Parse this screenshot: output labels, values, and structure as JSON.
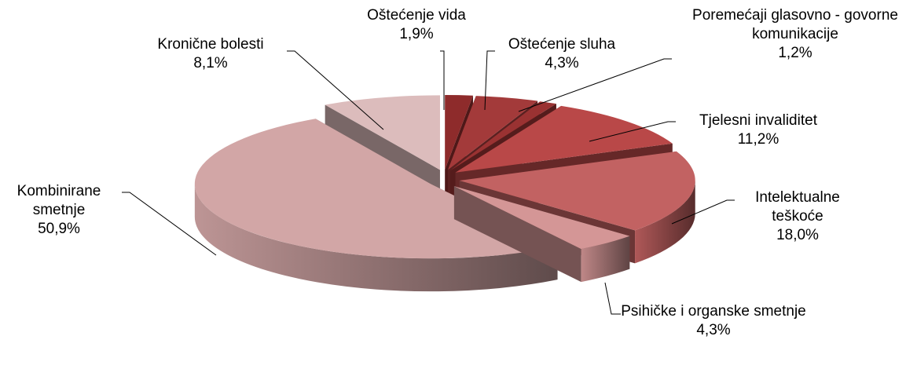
{
  "chart_data": {
    "type": "pie",
    "categories": [
      "Oštećenje vida",
      "Oštećenje sluha",
      "Poremećaji glasovno - govorne komunikacije",
      "Tjelesni invaliditet",
      "Intelektualne teškoće",
      "Psihičke i organske smetnje",
      "Kombinirane smetnje",
      "Kronične bolesti"
    ],
    "values": [
      1.9,
      4.3,
      1.2,
      11.2,
      18.0,
      4.3,
      50.9,
      8.1
    ],
    "value_labels": [
      "1,9%",
      "4,3%",
      "1,2%",
      "11,2%",
      "18,0%",
      "4,3%",
      "50,9%",
      "8,1%"
    ],
    "colors": [
      "#8e2b2b",
      "#a33a3a",
      "#9a3232",
      "#b94848",
      "#c26262",
      "#d49696",
      "#d2a6a6",
      "#dcbcbc"
    ]
  }
}
